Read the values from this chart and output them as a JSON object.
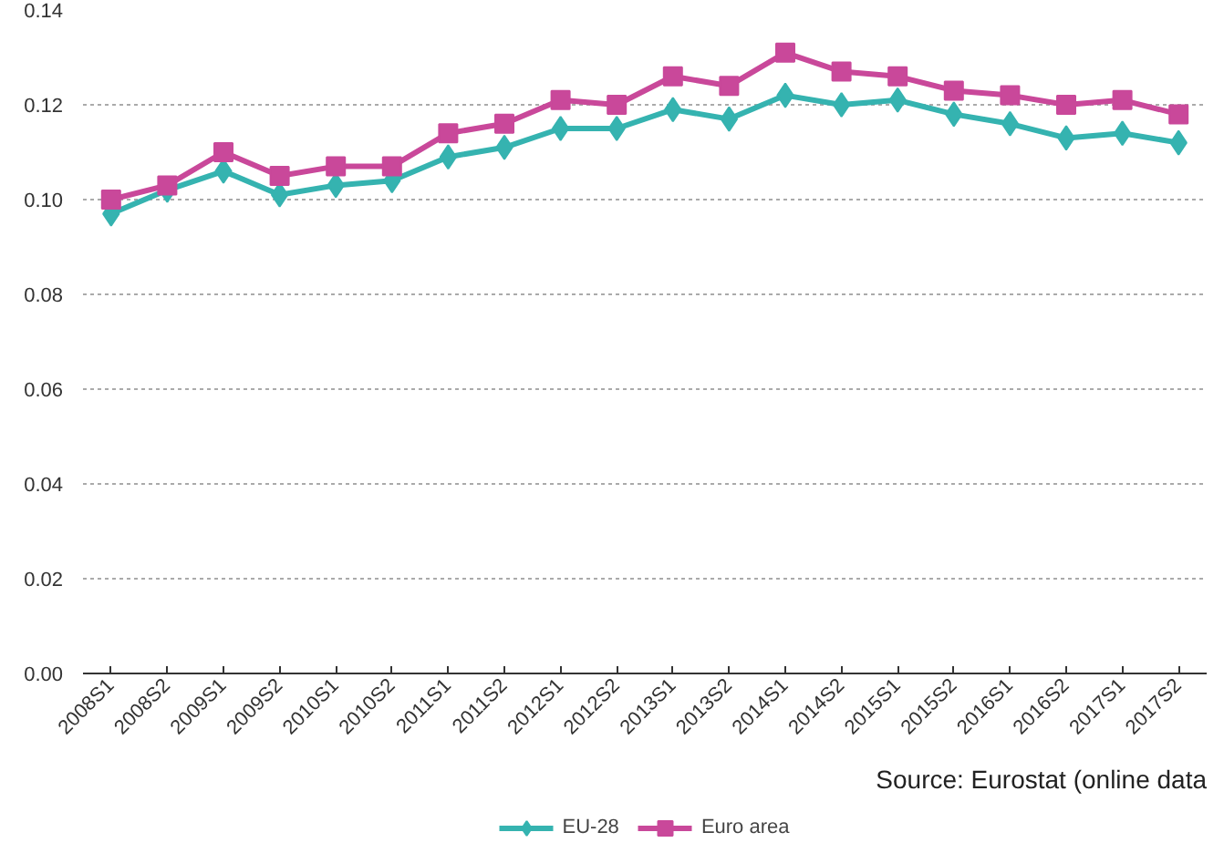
{
  "chart_data": {
    "type": "line",
    "categories": [
      "2008S1",
      "2008S2",
      "2009S1",
      "2009S2",
      "2010S1",
      "2010S2",
      "2011S1",
      "2011S2",
      "2012S1",
      "2012S2",
      "2013S1",
      "2013S2",
      "2014S1",
      "2014S2",
      "2015S1",
      "2015S2",
      "2016S1",
      "2016S2",
      "2017S1",
      "2017S2"
    ],
    "series": [
      {
        "name": "EU-28",
        "color": "#35b3b0",
        "marker": "diamond",
        "values": [
          0.097,
          0.102,
          0.106,
          0.101,
          0.103,
          0.104,
          0.109,
          0.111,
          0.115,
          0.115,
          0.119,
          0.117,
          0.122,
          0.12,
          0.121,
          0.118,
          0.116,
          0.113,
          0.114,
          0.112
        ]
      },
      {
        "name": "Euro area",
        "color": "#c9489a",
        "marker": "square",
        "values": [
          0.1,
          0.103,
          0.11,
          0.105,
          0.107,
          0.107,
          0.114,
          0.116,
          0.121,
          0.12,
          0.126,
          0.124,
          0.131,
          0.127,
          0.126,
          0.123,
          0.122,
          0.12,
          0.121,
          0.118
        ]
      }
    ],
    "ylim": [
      0,
      0.14
    ],
    "yticks": [
      {
        "value": 0,
        "label": "0.00"
      },
      {
        "value": 0.02,
        "label": "0.02"
      },
      {
        "value": 0.04,
        "label": "0.04"
      },
      {
        "value": 0.06,
        "label": "0.06"
      },
      {
        "value": 0.08,
        "label": "0.08"
      },
      {
        "value": 0.1,
        "label": "0.10"
      },
      {
        "value": 0.12,
        "label": "0.12"
      },
      {
        "value": 0.14,
        "label": "0.14"
      }
    ],
    "grid": "y",
    "legend": "bottom",
    "line_style": "solid",
    "annotations": [
      "Source: Eurostat (online data"
    ]
  }
}
